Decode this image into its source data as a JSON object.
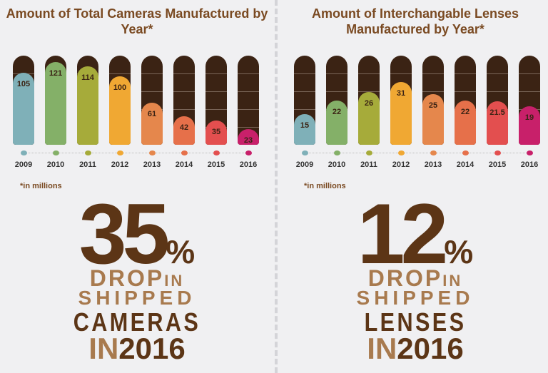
{
  "colors": [
    "#7fb0b8",
    "#84b068",
    "#a6ab3a",
    "#f0a833",
    "#e5874c",
    "#e6704a",
    "#e34f4f",
    "#c8206a"
  ],
  "chart_data": [
    {
      "type": "bar",
      "title": "Amount of Total Cameras Manufactured by Year*",
      "categories": [
        "2009",
        "2010",
        "2011",
        "2012",
        "2013",
        "2014",
        "2015",
        "2016"
      ],
      "values": [
        105,
        121,
        114,
        100,
        61,
        42,
        35,
        23
      ],
      "value_labels": [
        "105",
        "121",
        "114",
        "100",
        "61",
        "42",
        "35",
        "23"
      ],
      "ylim": [
        0,
        130
      ],
      "note": "*in millions"
    },
    {
      "type": "bar",
      "title": "Amount of Interchangable Lenses Manufactured by Year*",
      "categories": [
        "2009",
        "2010",
        "2011",
        "2012",
        "2013",
        "2014",
        "2015",
        "2016"
      ],
      "values": [
        15,
        22,
        26,
        31,
        25,
        22,
        21.5,
        19
      ],
      "value_labels": [
        "15",
        "22",
        "26",
        "31",
        "25",
        "22",
        "21.5",
        "19"
      ],
      "ylim": [
        0,
        44
      ],
      "note": "*in millions"
    }
  ],
  "callouts": [
    {
      "number": "35",
      "percent": "%",
      "drop": "DROP",
      "in1": "IN",
      "shipped": "SHIPPED",
      "item": "CAMERAS",
      "in2": "IN",
      "year": "2016"
    },
    {
      "number": "12",
      "percent": "%",
      "drop": "DROP",
      "in1": "IN",
      "shipped": "SHIPPED",
      "item": "LENSES",
      "in2": "IN",
      "year": "2016"
    }
  ]
}
